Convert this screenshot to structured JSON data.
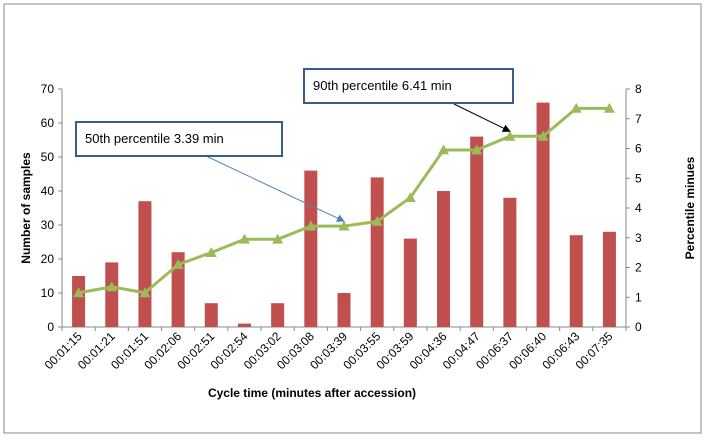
{
  "chart_data": {
    "type": "bar",
    "categories": [
      "00:01:15",
      "00:01:21",
      "00:01:51",
      "00:02:06",
      "00:02:51",
      "00:02:54",
      "00:03:02",
      "00:03:08",
      "00:03:39",
      "00:03:55",
      "00:03:59",
      "00:04:36",
      "00:04:47",
      "00:06:37",
      "00:06:40",
      "00:06:43",
      "00:07:35"
    ],
    "series": [
      {
        "kind": "bar",
        "axis": "left",
        "values": [
          15,
          19,
          37,
          22,
          7,
          1,
          7,
          46,
          10,
          44,
          26,
          40,
          56,
          38,
          66,
          27,
          28
        ],
        "color": "#c0504d"
      },
      {
        "kind": "line",
        "axis": "right",
        "values": [
          1.15,
          1.35,
          1.15,
          2.1,
          2.5,
          2.95,
          2.95,
          3.39,
          3.39,
          3.55,
          4.35,
          5.95,
          5.95,
          6.41,
          6.41,
          7.35,
          7.35
        ],
        "color": "#9bbb59"
      }
    ],
    "xlabel": "Cycle time (minutes after accession)",
    "ylabel": "Number of samples",
    "y2label": "Percentile minues",
    "ylim": [
      0,
      70
    ],
    "yticks": [
      0,
      10,
      20,
      30,
      40,
      50,
      60,
      70
    ],
    "y2lim": [
      0,
      8
    ],
    "y2ticks": [
      0,
      1,
      2,
      3,
      4,
      5,
      6,
      7,
      8
    ],
    "grid": false,
    "legend": "none",
    "annotations": [
      {
        "text": "50th percentile 3.39  min",
        "category_index": 8,
        "target": 3.39,
        "arrow_color": "#4f81bd"
      },
      {
        "text": "90th percentile 6.41  min",
        "category_index": 13,
        "target": 6.41,
        "arrow_color": "#000000"
      }
    ]
  }
}
